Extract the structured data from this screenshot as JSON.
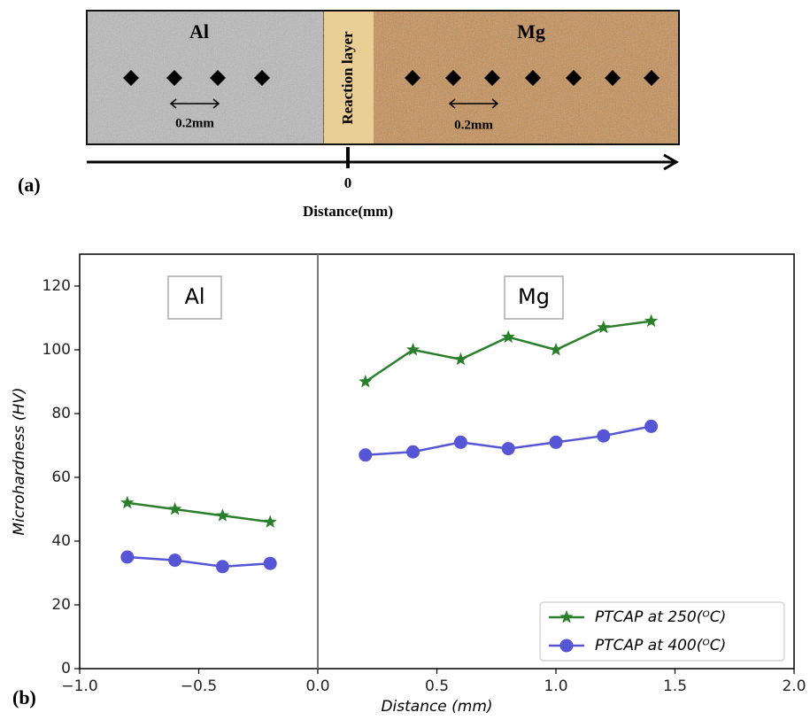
{
  "schematic": {
    "panel_label": "(a)",
    "regions": [
      "Al",
      "Reaction layer",
      "Mg"
    ],
    "spacing_labels": [
      "0.2mm",
      "0.2mm"
    ],
    "axis_origin": "0",
    "axis_label": "Distance(mm)"
  },
  "chart_data": {
    "type": "line",
    "panel_label": "(b)",
    "x_label": "Distance (mm)",
    "y_label": "Microhardness (HV)",
    "annotations": [
      "Al",
      "Mg"
    ],
    "x": [
      -0.8,
      -0.6,
      -0.4,
      -0.2,
      0,
      0.2,
      0.4,
      0.6,
      0.8,
      1.0,
      1.2,
      1.4
    ],
    "series": [
      {
        "name": "PTCAP at 250(ᴼC)",
        "color": "#2a7f2a",
        "marker": "star",
        "values": [
          52,
          50,
          48,
          46,
          null,
          90,
          100,
          97,
          104,
          100,
          107,
          109
        ]
      },
      {
        "name": "PTCAP at 400(ᴼC)",
        "color": "#5555d5",
        "marker": "circle",
        "values": [
          35,
          34,
          32,
          33,
          null,
          67,
          68,
          71,
          69,
          71,
          73,
          76
        ]
      }
    ],
    "xlim": [
      -1.0,
      2.0
    ],
    "xticks": [
      {
        "value": -1.0,
        "label": "−1.0"
      },
      {
        "value": -0.5,
        "label": "−0.5"
      },
      {
        "value": 0,
        "label": "0.0"
      },
      {
        "value": 0.5,
        "label": "0.5"
      },
      {
        "value": 1.0,
        "label": "1.0"
      },
      {
        "value": 1.5,
        "label": "1.5"
      },
      {
        "value": 2.0,
        "label": "2.0"
      }
    ],
    "ylim": [
      0,
      130
    ],
    "yticks": [
      0,
      20,
      40,
      60,
      80,
      100,
      120
    ],
    "vline": 0,
    "legend": "lower right"
  }
}
